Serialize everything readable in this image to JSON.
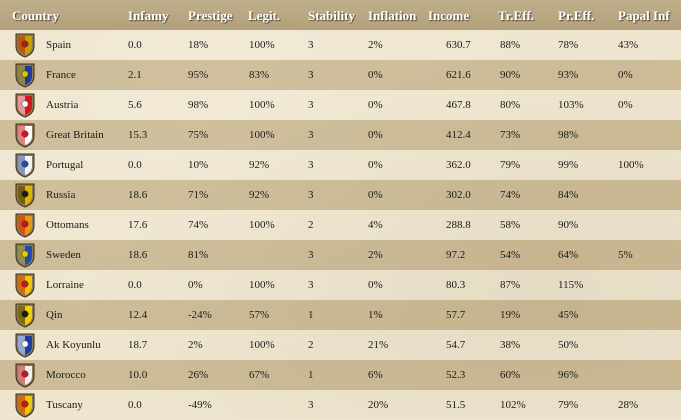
{
  "headers": {
    "country": "Country",
    "infamy": "Infamy",
    "prestige": "Prestige",
    "legit": "Legit.",
    "stability": "Stability",
    "inflation": "Inflation",
    "income": "Income",
    "tr_eff": "Tr.Eff.",
    "pr_eff": "Pr.Eff.",
    "papal_inf": "Papal Inf"
  },
  "rows": [
    {
      "name": "Spain",
      "infamy": "0.0",
      "prestige": "18%",
      "legit": "100%",
      "stability": "3",
      "inflation": "2%",
      "income": "630.7",
      "tr_eff": "88%",
      "pr_eff": "78%",
      "papal_inf": "43%",
      "flag": "spain-flag-icon",
      "colors": [
        "#c8a000",
        "#b01c1c"
      ]
    },
    {
      "name": "France",
      "infamy": "2.1",
      "prestige": "95%",
      "legit": "83%",
      "stability": "3",
      "inflation": "0%",
      "income": "621.6",
      "tr_eff": "90%",
      "pr_eff": "93%",
      "papal_inf": "0%",
      "flag": "france-flag-icon",
      "colors": [
        "#1f3c9e",
        "#e6c200"
      ]
    },
    {
      "name": "Austria",
      "infamy": "5.6",
      "prestige": "98%",
      "legit": "100%",
      "stability": "3",
      "inflation": "0%",
      "income": "467.8",
      "tr_eff": "80%",
      "pr_eff": "103%",
      "papal_inf": "0%",
      "flag": "austria-flag-icon",
      "colors": [
        "#d01818",
        "#ffffff"
      ]
    },
    {
      "name": "Great Britain",
      "infamy": "15.3",
      "prestige": "75%",
      "legit": "100%",
      "stability": "3",
      "inflation": "0%",
      "income": "412.4",
      "tr_eff": "73%",
      "pr_eff": "98%",
      "papal_inf": "",
      "flag": "great-britain-flag-icon",
      "colors": [
        "#ffffff",
        "#d01818"
      ]
    },
    {
      "name": "Portugal",
      "infamy": "0.0",
      "prestige": "10%",
      "legit": "92%",
      "stability": "3",
      "inflation": "0%",
      "income": "362.0",
      "tr_eff": "79%",
      "pr_eff": "99%",
      "papal_inf": "100%",
      "flag": "portugal-flag-icon",
      "colors": [
        "#f4f4f4",
        "#2a4aa8"
      ]
    },
    {
      "name": "Russia",
      "infamy": "18.6",
      "prestige": "71%",
      "legit": "92%",
      "stability": "3",
      "inflation": "0%",
      "income": "302.0",
      "tr_eff": "74%",
      "pr_eff": "84%",
      "papal_inf": "",
      "flag": "russia-flag-icon",
      "colors": [
        "#e0b400",
        "#1a1a1a"
      ]
    },
    {
      "name": "Ottomans",
      "infamy": "17.6",
      "prestige": "74%",
      "legit": "100%",
      "stability": "2",
      "inflation": "4%",
      "income": "288.8",
      "tr_eff": "58%",
      "pr_eff": "90%",
      "papal_inf": "",
      "flag": "ottomans-flag-icon",
      "colors": [
        "#e89a10",
        "#c01a1a"
      ]
    },
    {
      "name": "Sweden",
      "infamy": "18.6",
      "prestige": "81%",
      "legit": "",
      "stability": "3",
      "inflation": "2%",
      "income": "97.2",
      "tr_eff": "54%",
      "pr_eff": "64%",
      "papal_inf": "5%",
      "flag": "sweden-flag-icon",
      "colors": [
        "#1f4ab0",
        "#f0c800"
      ]
    },
    {
      "name": "Lorraine",
      "infamy": "0.0",
      "prestige": "0%",
      "legit": "100%",
      "stability": "3",
      "inflation": "0%",
      "income": "80.3",
      "tr_eff": "87%",
      "pr_eff": "115%",
      "papal_inf": "",
      "flag": "lorraine-flag-icon",
      "colors": [
        "#f0c800",
        "#c01a1a"
      ]
    },
    {
      "name": "Qin",
      "infamy": "12.4",
      "prestige": "-24%",
      "legit": "57%",
      "stability": "1",
      "inflation": "1%",
      "income": "57.7",
      "tr_eff": "19%",
      "pr_eff": "45%",
      "papal_inf": "",
      "flag": "qin-flag-icon",
      "colors": [
        "#f0d000",
        "#1a1a1a"
      ]
    },
    {
      "name": "Ak Koyunlu",
      "infamy": "18.7",
      "prestige": "2%",
      "legit": "100%",
      "stability": "2",
      "inflation": "21%",
      "income": "54.7",
      "tr_eff": "38%",
      "pr_eff": "50%",
      "papal_inf": "",
      "flag": "ak-koyunlu-flag-icon",
      "colors": [
        "#1a3fa0",
        "#ffffff"
      ]
    },
    {
      "name": "Morocco",
      "infamy": "10.0",
      "prestige": "26%",
      "legit": "67%",
      "stability": "1",
      "inflation": "6%",
      "income": "52.3",
      "tr_eff": "60%",
      "pr_eff": "96%",
      "papal_inf": "",
      "flag": "morocco-flag-icon",
      "colors": [
        "#f2f2f2",
        "#c01a1a"
      ]
    },
    {
      "name": "Tuscany",
      "infamy": "0.0",
      "prestige": "-49%",
      "legit": "",
      "stability": "3",
      "inflation": "20%",
      "income": "51.5",
      "tr_eff": "102%",
      "pr_eff": "79%",
      "papal_inf": "28%",
      "flag": "tuscany-flag-icon",
      "colors": [
        "#f0c800",
        "#c01a1a"
      ]
    }
  ]
}
